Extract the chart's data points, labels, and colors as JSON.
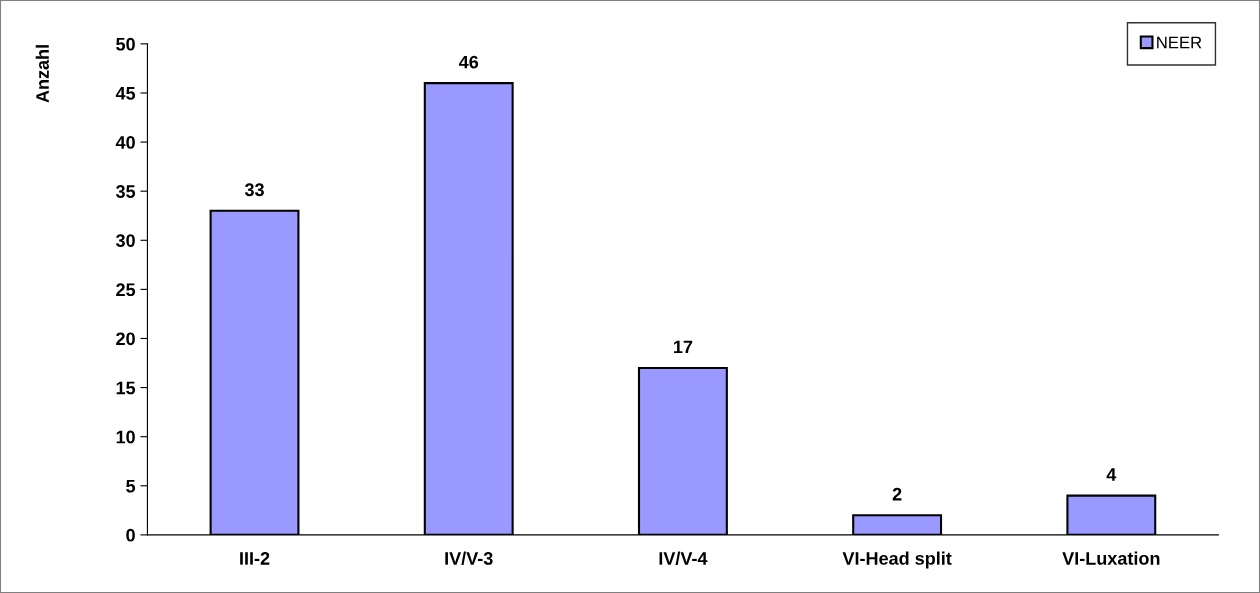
{
  "chart_data": {
    "type": "bar",
    "ylabel": "Anzahl",
    "categories": [
      "III-2",
      "IV/V-3",
      "IV/V-4",
      "VI-Head split",
      "VI-Luxation"
    ],
    "series": [
      {
        "name": "NEER",
        "color": "#9999ff",
        "values": [
          33,
          46,
          17,
          2,
          4
        ]
      }
    ],
    "ylim": [
      0,
      50
    ],
    "yticks": [
      0,
      5,
      10,
      15,
      20,
      25,
      30,
      35,
      40,
      45,
      50
    ],
    "data_labels": true,
    "legend": "top right",
    "grid": false
  }
}
